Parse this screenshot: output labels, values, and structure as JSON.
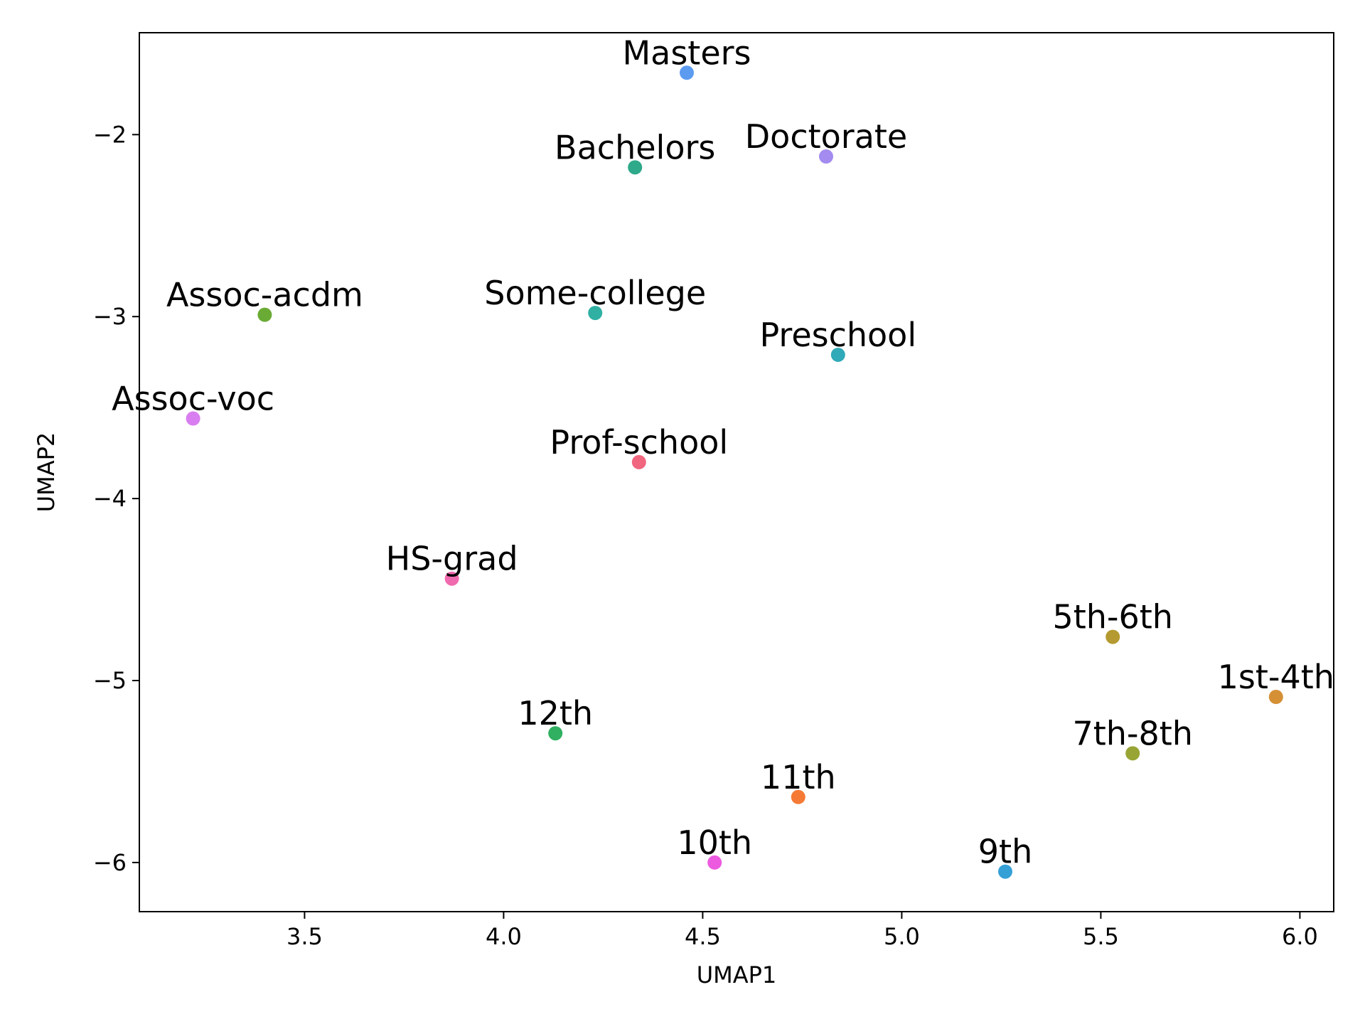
{
  "chart_data": {
    "type": "scatter",
    "title": "",
    "xlabel": "UMAP1",
    "ylabel": "UMAP2",
    "xlim": [
      3.085,
      6.085
    ],
    "ylim": [
      -6.27,
      -1.44
    ],
    "grid": false,
    "legend": "none",
    "x_ticks": [
      3.5,
      4.0,
      4.5,
      5.0,
      5.5,
      6.0
    ],
    "x_tick_labels": [
      "3.5",
      "4.0",
      "4.5",
      "5.0",
      "5.5",
      "6.0"
    ],
    "y_ticks": [
      -2,
      -3,
      -4,
      -5,
      -6
    ],
    "y_tick_labels": [
      "−2",
      "−3",
      "−4",
      "−5",
      "−6"
    ],
    "points": [
      {
        "label": "Masters",
        "x": 4.46,
        "y": -1.66,
        "color": "#5b9bf0"
      },
      {
        "label": "Bachelors",
        "x": 4.33,
        "y": -2.18,
        "color": "#2ea98a"
      },
      {
        "label": "Doctorate",
        "x": 4.81,
        "y": -2.12,
        "color": "#a38bef"
      },
      {
        "label": "Assoc-acdm",
        "x": 3.4,
        "y": -2.99,
        "color": "#6aab35"
      },
      {
        "label": "Some-college",
        "x": 4.23,
        "y": -2.98,
        "color": "#2fb0a3"
      },
      {
        "label": "Preschool",
        "x": 4.84,
        "y": -3.21,
        "color": "#30a9b8"
      },
      {
        "label": "Assoc-voc",
        "x": 3.22,
        "y": -3.56,
        "color": "#d97ef0"
      },
      {
        "label": "Prof-school",
        "x": 4.34,
        "y": -3.8,
        "color": "#f0667e"
      },
      {
        "label": "HS-grad",
        "x": 3.87,
        "y": -4.44,
        "color": "#f06aaf"
      },
      {
        "label": "5th-6th",
        "x": 5.53,
        "y": -4.76,
        "color": "#b49a30"
      },
      {
        "label": "1st-4th",
        "x": 5.94,
        "y": -5.09,
        "color": "#d59035"
      },
      {
        "label": "12th",
        "x": 4.13,
        "y": -5.29,
        "color": "#30b060"
      },
      {
        "label": "7th-8th",
        "x": 5.58,
        "y": -5.4,
        "color": "#98a535"
      },
      {
        "label": "11th",
        "x": 4.74,
        "y": -5.64,
        "color": "#f57a35"
      },
      {
        "label": "10th",
        "x": 4.53,
        "y": -6.0,
        "color": "#ec5ae0"
      },
      {
        "label": "9th",
        "x": 5.26,
        "y": -6.05,
        "color": "#35a0d6"
      }
    ]
  }
}
